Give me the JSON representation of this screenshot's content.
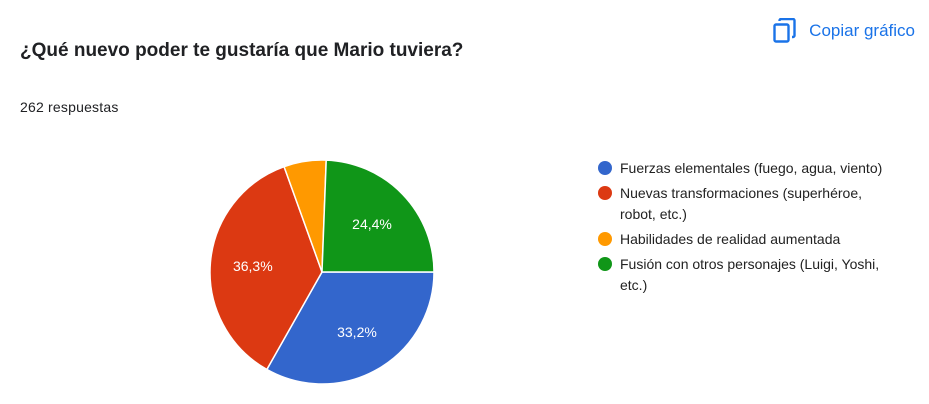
{
  "header": {
    "question": "¿Qué nuevo poder te gustaría que Mario tuviera?",
    "responses": "262 respuestas",
    "copy_label": "Copiar gráfico",
    "copy_icon": "copy-icon",
    "accent_color": "#1a73e8"
  },
  "chart_data": {
    "type": "pie",
    "title": "¿Qué nuevo poder te gustaría que Mario tuviera?",
    "legend_position": "right",
    "slices": [
      {
        "label": "Fuerzas elementales (fuego, agua, viento)",
        "value": 33.2,
        "display": "33,2%",
        "color": "#3366cc"
      },
      {
        "label": "Nuevas transformaciones (superhéroe, robot, etc.)",
        "value": 36.3,
        "display": "36,3%",
        "color": "#dc3912"
      },
      {
        "label": "Habilidades de realidad aumentada",
        "value": 6.1,
        "display": "",
        "color": "#ff9900"
      },
      {
        "label": "Fusión con otros personajes (Luigi, Yoshi, etc.)",
        "value": 24.4,
        "display": "24,4%",
        "color": "#109618"
      }
    ]
  }
}
